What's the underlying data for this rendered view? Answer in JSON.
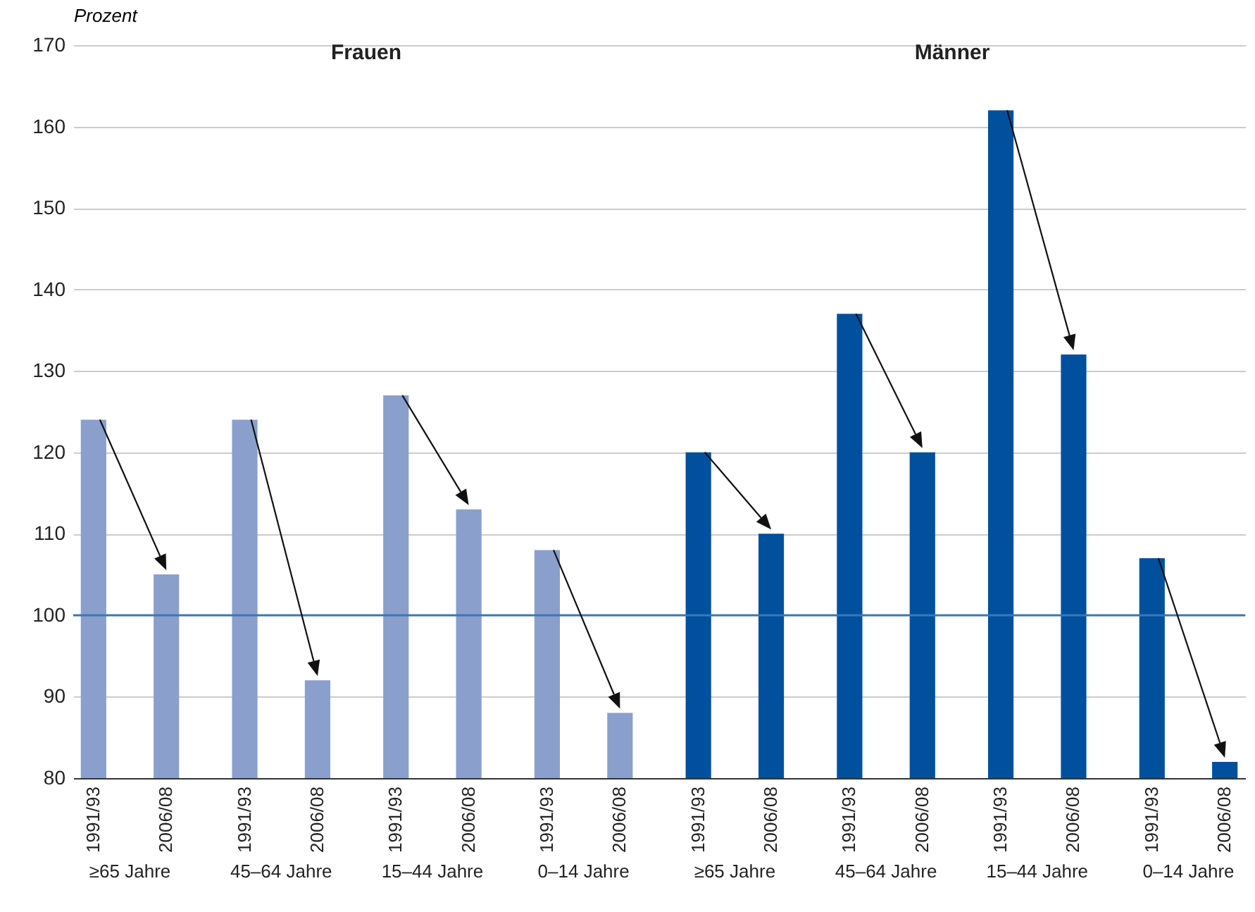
{
  "chart_data": {
    "type": "bar",
    "ylabel": "Prozent",
    "annotations": [
      "Frauen",
      "Männer"
    ],
    "categories": [
      "≥65 Jahre",
      "45–64 Jahre",
      "15–44 Jahre",
      "0–14 Jahre",
      "≥65 Jahre",
      "45–64 Jahre",
      "15–44 Jahre",
      "0–14 Jahre"
    ],
    "series": [
      {
        "name": "1991/93",
        "colors": [
          "#8a9fcc",
          "#8a9fcc",
          "#8a9fcc",
          "#8a9fcc",
          "#00509e",
          "#00509e",
          "#00509e",
          "#00509e"
        ],
        "values": [
          124,
          124,
          127,
          108,
          120,
          137,
          162,
          107
        ]
      },
      {
        "name": "2006/08",
        "colors": [
          "#8a9fcc",
          "#8a9fcc",
          "#8a9fcc",
          "#8a9fcc",
          "#00509e",
          "#00509e",
          "#00509e",
          "#00509e"
        ],
        "values": [
          105,
          92,
          113,
          88,
          110,
          120,
          132,
          82
        ]
      }
    ],
    "ylim": [
      80,
      170
    ],
    "yticks": [
      80,
      90,
      100,
      110,
      120,
      130,
      140,
      150,
      160,
      170
    ],
    "grid": "y",
    "ref_lines": [
      {
        "axis": "y",
        "value": 100,
        "color": "#3a78b5"
      }
    ]
  }
}
